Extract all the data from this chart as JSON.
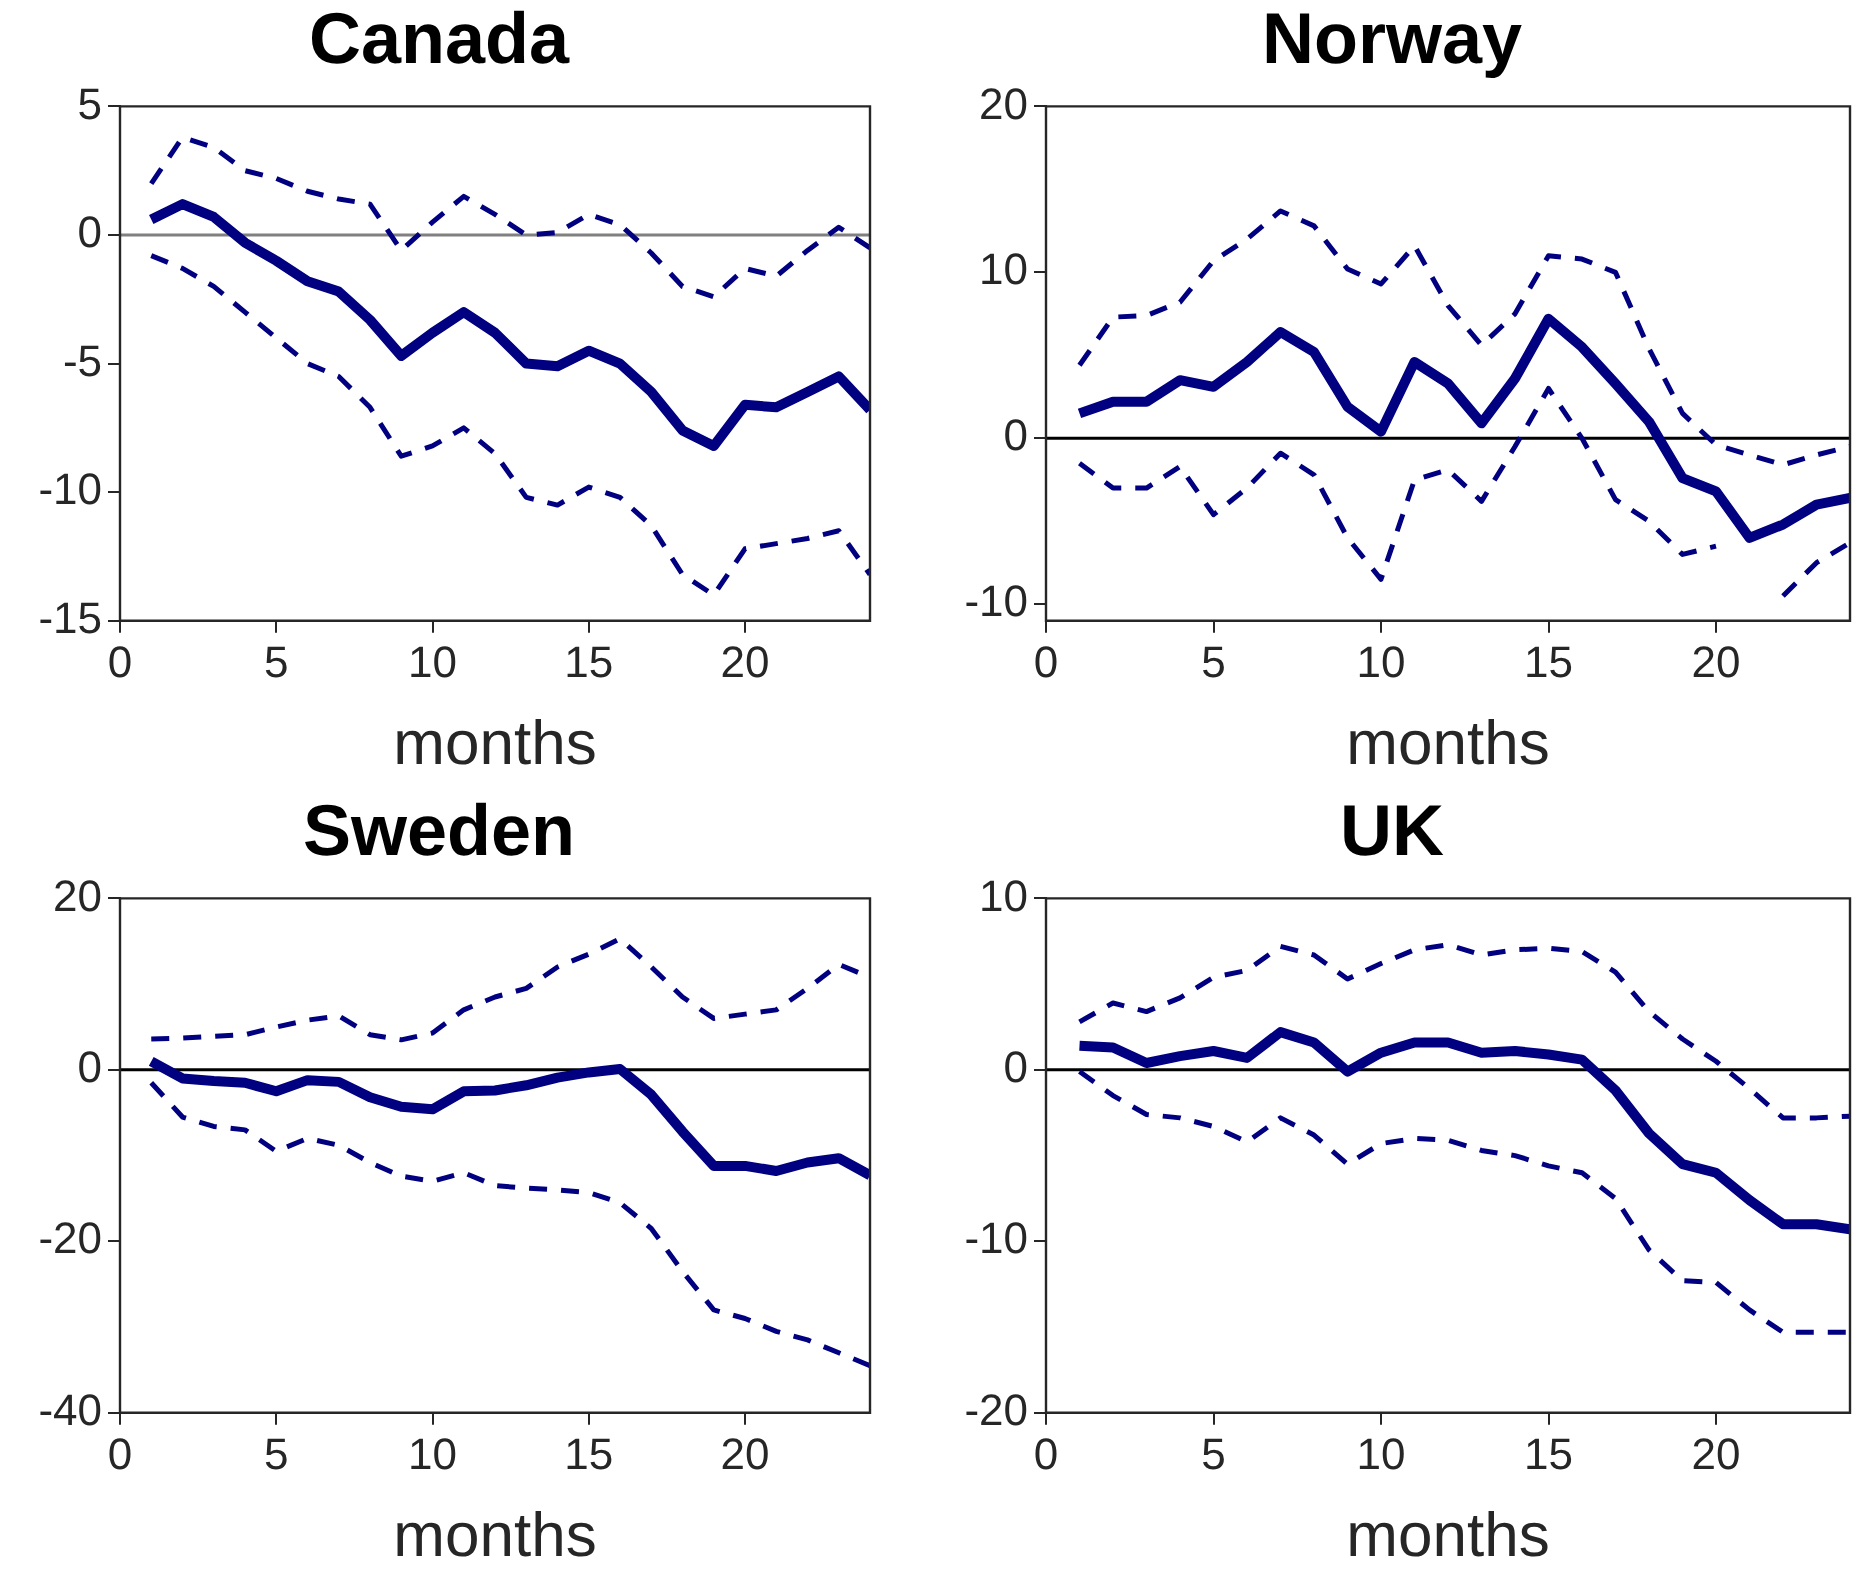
{
  "chart_data": [
    {
      "type": "line",
      "title": "Canada",
      "xlabel": "months",
      "x": [
        1,
        2,
        3,
        4,
        5,
        6,
        7,
        8,
        9,
        10,
        11,
        12,
        13,
        14,
        15,
        16,
        17,
        18,
        19,
        20,
        21,
        22,
        23,
        24
      ],
      "xlim": [
        0,
        24
      ],
      "xticks": [
        0,
        5,
        10,
        15,
        20
      ],
      "ylim": [
        -15,
        5
      ],
      "yticks": [
        -15,
        -10,
        -5,
        0,
        5
      ],
      "grid": false,
      "legend": false,
      "marker": "none",
      "ref_lines": [
        {
          "axis": "y",
          "value": 0,
          "color": "#808080"
        }
      ],
      "series": [
        {
          "color": "#000080",
          "line_style": "solid",
          "values": [
            0.6,
            1.2,
            0.7,
            -0.3,
            -1.0,
            -1.8,
            -2.2,
            -3.3,
            -4.7,
            -3.8,
            -3.0,
            -3.8,
            -5.0,
            -5.1,
            -4.5,
            -5.0,
            -6.1,
            -7.6,
            -8.2,
            -6.6,
            -6.7,
            -6.1,
            -5.5,
            -6.8
          ]
        },
        {
          "color": "#000080",
          "line_style": "dashed",
          "values": [
            2.0,
            3.8,
            3.4,
            2.5,
            2.2,
            1.7,
            1.4,
            1.2,
            -0.6,
            0.5,
            1.5,
            0.8,
            0.0,
            0.1,
            0.8,
            0.4,
            -0.7,
            -2.0,
            -2.4,
            -1.3,
            -1.6,
            -0.6,
            0.3,
            -0.5
          ]
        },
        {
          "color": "#000080",
          "line_style": "dashed",
          "values": [
            -0.8,
            -1.3,
            -2.0,
            -3.0,
            -4.0,
            -5.0,
            -5.5,
            -6.7,
            -8.6,
            -8.2,
            -7.5,
            -8.5,
            -10.2,
            -10.5,
            -9.8,
            -10.2,
            -11.3,
            -13.2,
            -14.0,
            -12.2,
            -12.0,
            -11.8,
            -11.5,
            -13.2
          ]
        }
      ]
    },
    {
      "type": "line",
      "title": "Norway",
      "xlabel": "months",
      "x": [
        1,
        2,
        3,
        4,
        5,
        6,
        7,
        8,
        9,
        10,
        11,
        12,
        13,
        14,
        15,
        16,
        17,
        18,
        19,
        20,
        21,
        22,
        23,
        24
      ],
      "xlim": [
        0,
        24
      ],
      "xticks": [
        0,
        5,
        10,
        15,
        20
      ],
      "ylim": [
        -11,
        20
      ],
      "yticks": [
        -10,
        0,
        10,
        20
      ],
      "grid": false,
      "legend": false,
      "marker": "none",
      "ref_lines": [
        {
          "axis": "y",
          "value": 0,
          "color": "#000000"
        }
      ],
      "series": [
        {
          "color": "#000080",
          "line_style": "solid",
          "values": [
            1.5,
            2.2,
            2.2,
            3.5,
            3.1,
            4.6,
            6.4,
            5.2,
            1.9,
            0.4,
            4.6,
            3.3,
            0.9,
            3.6,
            7.2,
            5.5,
            3.3,
            1.0,
            -2.4,
            -3.2,
            -6.0,
            -5.2,
            -4.0,
            -3.6
          ]
        },
        {
          "color": "#000080",
          "line_style": "dashed",
          "values": [
            4.4,
            7.3,
            7.4,
            8.2,
            10.7,
            12.0,
            13.7,
            12.8,
            10.2,
            9.3,
            11.6,
            8.0,
            5.6,
            7.5,
            11.0,
            10.8,
            10.0,
            5.4,
            1.5,
            -0.4,
            -1.0,
            -1.6,
            -1.0,
            -0.5
          ]
        },
        {
          "color": "#000080",
          "line_style": "dashed",
          "values": [
            -1.5,
            -3.0,
            -3.0,
            -1.7,
            -4.6,
            -3.0,
            -0.9,
            -2.2,
            -6.0,
            -8.5,
            -2.5,
            -1.9,
            -3.8,
            -0.5,
            3.0,
            0.0,
            -3.7,
            -5.0,
            -7.0,
            -6.5,
            null,
            -9.5,
            -7.5,
            -6.3
          ]
        }
      ]
    },
    {
      "type": "line",
      "title": "Sweden",
      "xlabel": "months",
      "x": [
        1,
        2,
        3,
        4,
        5,
        6,
        7,
        8,
        9,
        10,
        11,
        12,
        13,
        14,
        15,
        16,
        17,
        18,
        19,
        20,
        21,
        22,
        23,
        24
      ],
      "xlim": [
        0,
        24
      ],
      "xticks": [
        0,
        5,
        10,
        15,
        20
      ],
      "ylim": [
        -40,
        20
      ],
      "yticks": [
        -40,
        -20,
        0,
        20
      ],
      "grid": false,
      "legend": false,
      "marker": "none",
      "ref_lines": [
        {
          "axis": "y",
          "value": 0,
          "color": "#000000"
        }
      ],
      "series": [
        {
          "color": "#000080",
          "line_style": "solid",
          "values": [
            1.0,
            -1.0,
            -1.3,
            -1.5,
            -2.5,
            -1.2,
            -1.4,
            -3.2,
            -4.3,
            -4.6,
            -2.5,
            -2.4,
            -1.8,
            -0.9,
            -0.3,
            0.1,
            -2.9,
            -7.2,
            -11.2,
            -11.2,
            -11.8,
            -10.8,
            -10.3,
            -12.3
          ]
        },
        {
          "color": "#000080",
          "line_style": "dashed",
          "values": [
            3.6,
            3.7,
            3.9,
            4.1,
            5.0,
            5.8,
            6.3,
            4.1,
            3.5,
            4.3,
            7.0,
            8.5,
            9.5,
            12.0,
            13.5,
            15.3,
            12.0,
            8.5,
            6.0,
            6.5,
            7.0,
            9.5,
            12.3,
            10.8
          ]
        },
        {
          "color": "#000080",
          "line_style": "dashed",
          "values": [
            -1.5,
            -5.5,
            -6.6,
            -7.0,
            -9.5,
            -8.0,
            -8.8,
            -10.8,
            -12.4,
            -13.0,
            -12.0,
            -13.5,
            -13.8,
            -14.0,
            -14.3,
            -15.5,
            -18.5,
            -23.5,
            -28.0,
            -29.0,
            -30.5,
            -31.5,
            -33.0,
            -34.5
          ]
        }
      ]
    },
    {
      "type": "line",
      "title": "UK",
      "xlabel": "months",
      "x": [
        1,
        2,
        3,
        4,
        5,
        6,
        7,
        8,
        9,
        10,
        11,
        12,
        13,
        14,
        15,
        16,
        17,
        18,
        19,
        20,
        21,
        22,
        23,
        24
      ],
      "xlim": [
        0,
        24
      ],
      "xticks": [
        0,
        5,
        10,
        15,
        20
      ],
      "ylim": [
        -20,
        10
      ],
      "yticks": [
        -20,
        -10,
        0,
        10
      ],
      "grid": false,
      "legend": false,
      "marker": "none",
      "ref_lines": [
        {
          "axis": "y",
          "value": 0,
          "color": "#000000"
        }
      ],
      "series": [
        {
          "color": "#000080",
          "line_style": "solid",
          "values": [
            1.4,
            1.3,
            0.4,
            0.8,
            1.1,
            0.7,
            2.2,
            1.6,
            -0.1,
            1.0,
            1.6,
            1.6,
            1.0,
            1.1,
            0.9,
            0.6,
            -1.2,
            -3.7,
            -5.5,
            -6.0,
            -7.6,
            -9.0,
            -9.0,
            -9.3
          ]
        },
        {
          "color": "#000080",
          "line_style": "dashed",
          "values": [
            2.8,
            3.9,
            3.4,
            4.2,
            5.4,
            5.8,
            7.2,
            6.7,
            5.3,
            6.2,
            7.0,
            7.3,
            6.7,
            7.0,
            7.1,
            6.9,
            5.7,
            3.4,
            1.8,
            0.5,
            -1.1,
            -2.8,
            -2.8,
            -2.7
          ]
        },
        {
          "color": "#000080",
          "line_style": "dashed",
          "values": [
            -0.1,
            -1.5,
            -2.6,
            -2.8,
            -3.3,
            -4.2,
            -2.8,
            -3.8,
            -5.5,
            -4.3,
            -4.0,
            -4.1,
            -4.7,
            -5.0,
            -5.6,
            -6.0,
            -7.5,
            -10.5,
            -12.3,
            -12.4,
            -14.0,
            -15.3,
            -15.3,
            -15.3
          ]
        }
      ]
    }
  ]
}
